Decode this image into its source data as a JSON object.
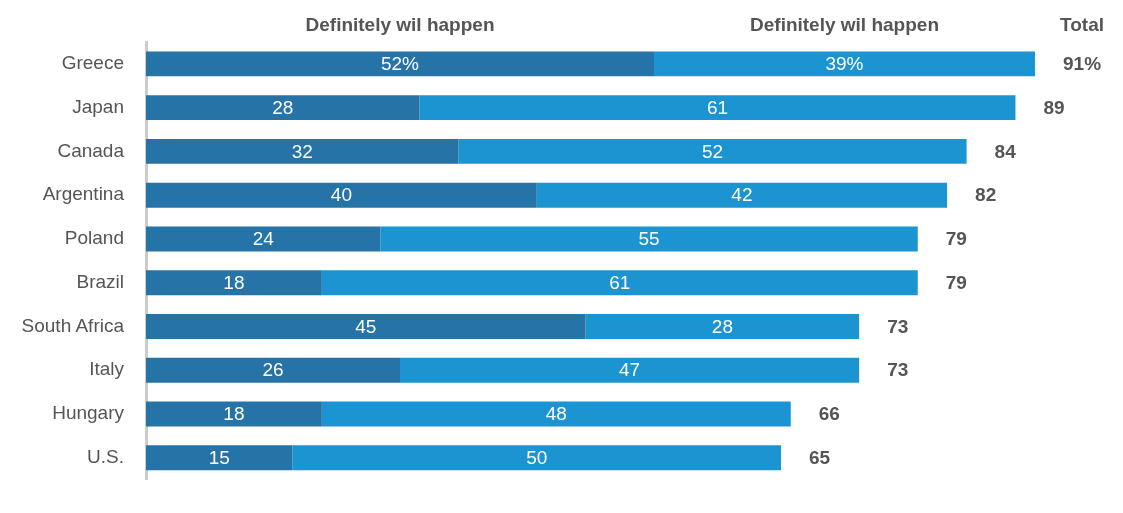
{
  "chart_data": {
    "type": "bar",
    "orientation": "horizontal",
    "stacked": true,
    "tick_labels": "y",
    "categories": [
      "Greece",
      "Japan",
      "Canada",
      "Argentina",
      "Poland",
      "Brazil",
      "South Africa",
      "Italy",
      "Hungary",
      "U.S."
    ],
    "series": [
      {
        "name": "Definitely wil happen",
        "color": "#2673a7",
        "values": [
          52,
          28,
          32,
          40,
          24,
          18,
          45,
          26,
          18,
          15
        ],
        "value_labels": [
          "52%",
          "28",
          "32",
          "40",
          "24",
          "18",
          "45",
          "26",
          "18",
          "15"
        ]
      },
      {
        "name": "Definitely wil happen",
        "color": "#1c94d2",
        "values": [
          39,
          61,
          52,
          42,
          55,
          61,
          28,
          47,
          48,
          50
        ],
        "value_labels": [
          "39%",
          "61",
          "52",
          "42",
          "55",
          "61",
          "28",
          "47",
          "48",
          "50"
        ]
      }
    ],
    "totals": [
      "91%",
      "89",
      "84",
      "82",
      "79",
      "79",
      "73",
      "73",
      "66",
      "65"
    ],
    "annotations": [
      "Total"
    ]
  }
}
